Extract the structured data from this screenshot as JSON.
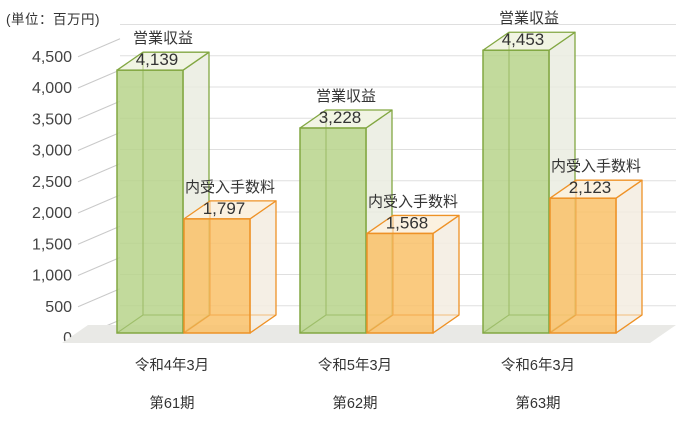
{
  "chart_data": {
    "type": "bar",
    "projection": "3d",
    "unit_label": "(単位：百万円)",
    "categories": [
      {
        "period": "令和4年3月",
        "term": "第61期"
      },
      {
        "period": "令和5年3月",
        "term": "第62期"
      },
      {
        "period": "令和6年3月",
        "term": "第63期"
      }
    ],
    "series": [
      {
        "name": "営業収益",
        "values": [
          4139,
          3228,
          4453
        ],
        "labels": [
          "4,139",
          "3,228",
          "4,453"
        ],
        "color": {
          "front": "#b7d38b",
          "top": "#f0f3e2",
          "side": "#eaece0",
          "stroke": "#82a742"
        }
      },
      {
        "name": "内受入手数料",
        "values": [
          1797,
          1568,
          2123
        ],
        "labels": [
          "1,797",
          "1,568",
          "2,123"
        ],
        "color": {
          "front": "#f9c169",
          "top": "#fbf0de",
          "side": "#f3ece1",
          "stroke": "#ee9227"
        }
      }
    ],
    "y_axis": {
      "min": 0,
      "max": 4500,
      "step": 500,
      "tick_labels": [
        "0",
        "500",
        "1,000",
        "1,500",
        "2,000",
        "2,500",
        "3,000",
        "3,500",
        "4,000",
        "4,500"
      ]
    },
    "grid": true,
    "legend": "labels-above-bars",
    "colors": {
      "floor": "#e9e9e6",
      "grid": "#dfdfdf",
      "tick": "#c9c9c9",
      "text": "#333333"
    }
  }
}
